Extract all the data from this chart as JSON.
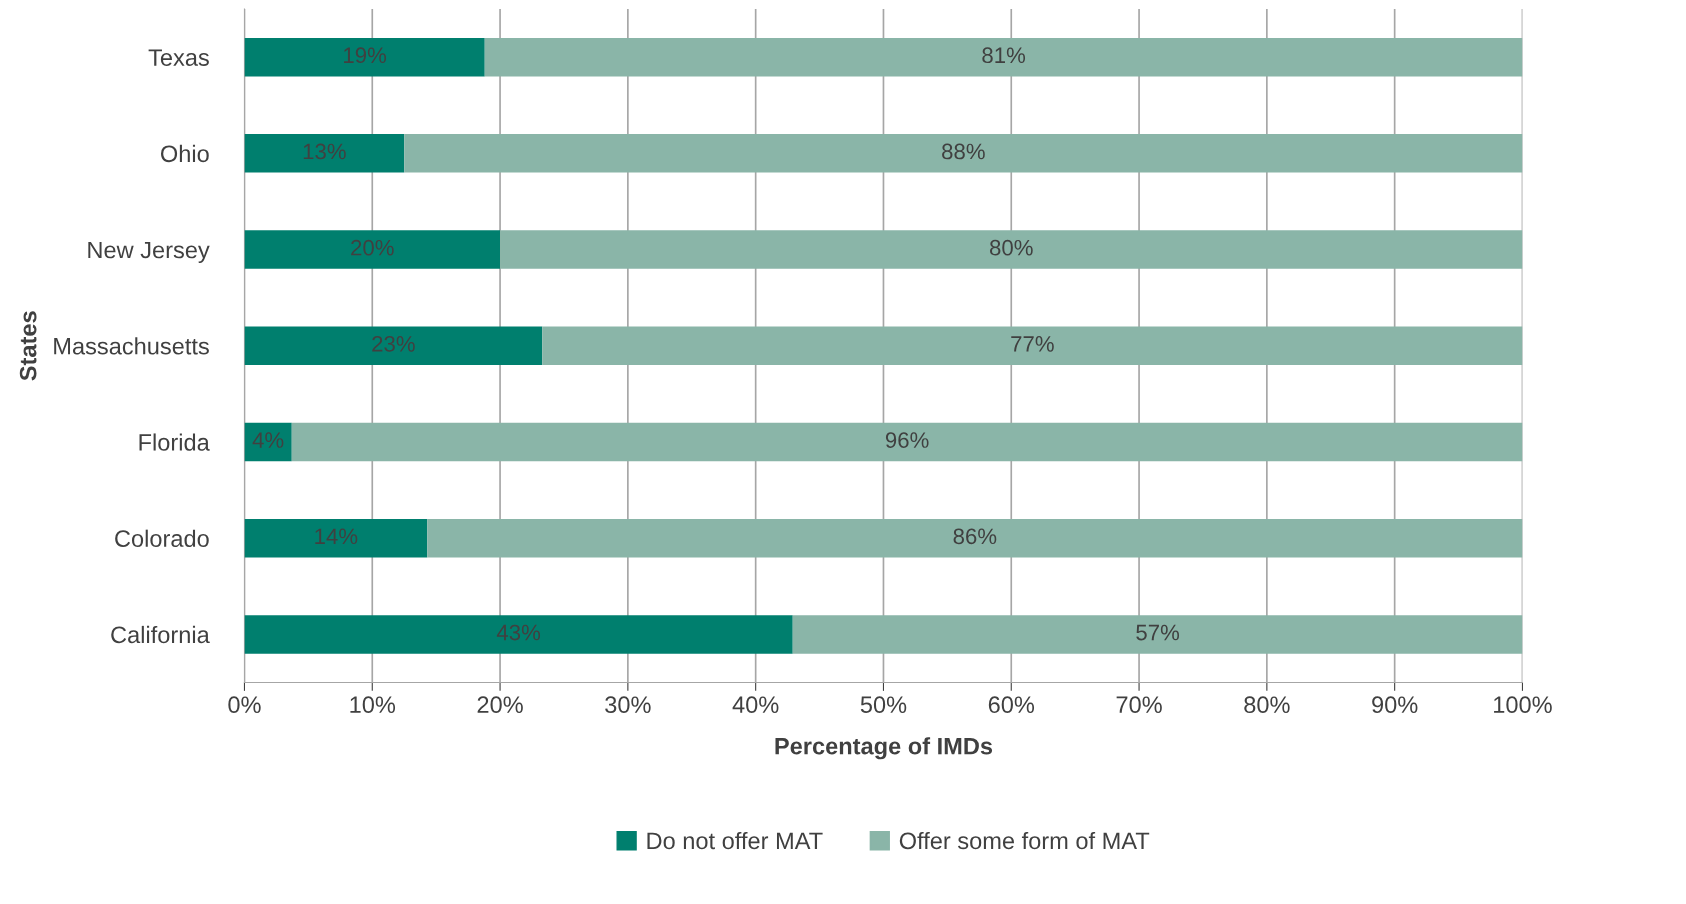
{
  "chart_data": {
    "type": "bar",
    "orientation": "horizontal",
    "stacked": true,
    "xlabel": "Percentage of IMDs",
    "ylabel": "States",
    "categories": [
      "Texas",
      "Ohio",
      "New Jersey",
      "Massachusetts",
      "Florida",
      "Colorado",
      "California"
    ],
    "series": [
      {
        "name": "Do not offer MAT",
        "color": "#007f6e",
        "values": [
          18.8,
          12.5,
          20,
          23.3,
          3.7,
          14.3,
          42.9
        ],
        "value_labels": [
          "19%",
          "13%",
          "20%",
          "23%",
          "4%",
          "14%",
          "43%"
        ]
      },
      {
        "name": "Offer some form of MAT",
        "color": "#8ab5a8",
        "values": [
          81.2,
          87.5,
          80,
          76.7,
          96.3,
          85.7,
          57.1
        ],
        "value_labels": [
          "81%",
          "88%",
          "80%",
          "77%",
          "96%",
          "86%",
          "57%"
        ]
      }
    ],
    "xlim": [
      0,
      100
    ],
    "xticks": [
      {
        "value": 0,
        "label": "0%"
      },
      {
        "value": 10,
        "label": "10%"
      },
      {
        "value": 20,
        "label": "20%"
      },
      {
        "value": 30,
        "label": "30%"
      },
      {
        "value": 40,
        "label": "40%"
      },
      {
        "value": 50,
        "label": "50%"
      },
      {
        "value": 60,
        "label": "60%"
      },
      {
        "value": 70,
        "label": "70%"
      },
      {
        "value": 80,
        "label": "80%"
      },
      {
        "value": 90,
        "label": "90%"
      },
      {
        "value": 100,
        "label": "100%"
      }
    ],
    "grid": "x",
    "legend": "bottom"
  }
}
